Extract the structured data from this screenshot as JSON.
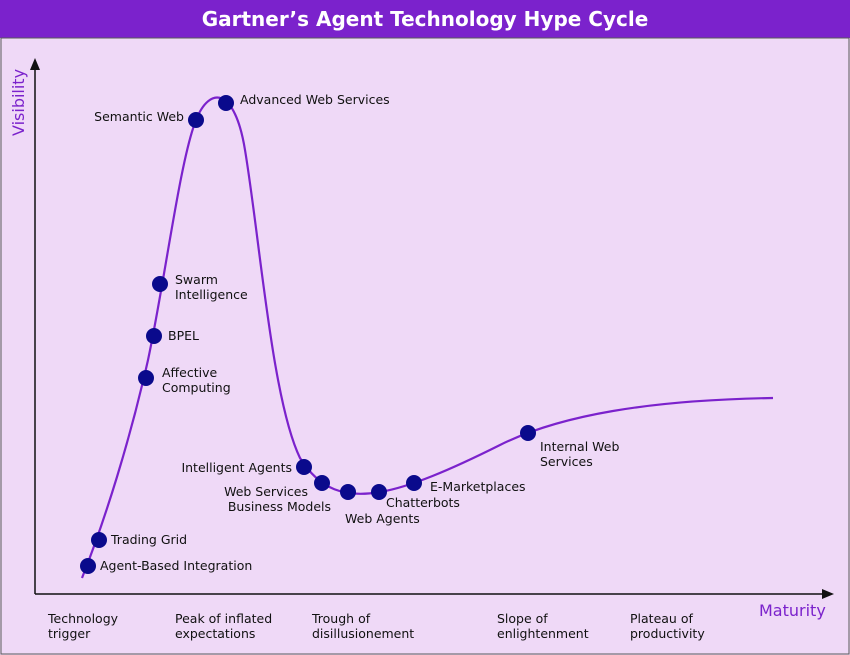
{
  "title": "Gartner’s Agent Technology Hype Cycle",
  "axes": {
    "y_label": "Visibility",
    "x_label": "Maturity"
  },
  "phases": [
    [
      "Technology",
      "trigger"
    ],
    [
      "Peak of inflated",
      "expectations"
    ],
    [
      "Trough of",
      "disillusionement"
    ],
    [
      "Slope of",
      "enlightenment"
    ],
    [
      "Plateau of",
      "productivity"
    ]
  ],
  "technologies": [
    [
      "Agent-Based Integration"
    ],
    [
      "Trading Grid"
    ],
    [
      "Affective",
      "Computing"
    ],
    [
      "BPEL"
    ],
    [
      "Swarm",
      "Intelligence"
    ],
    [
      "Semantic Web"
    ],
    [
      "Advanced Web Services"
    ],
    [
      "Intelligent Agents"
    ],
    [
      "Web Services",
      "Business Models"
    ],
    [
      "Web Agents"
    ],
    [
      "Chatterbots"
    ],
    [
      "E-Marketplaces"
    ],
    [
      "Internal Web",
      "Services"
    ]
  ],
  "colors": {
    "title_bar": "#7b22cc",
    "background": "#efd9f7",
    "curve": "#7b22cc",
    "axes": "#111111",
    "marker": "#0a0a8c"
  }
}
